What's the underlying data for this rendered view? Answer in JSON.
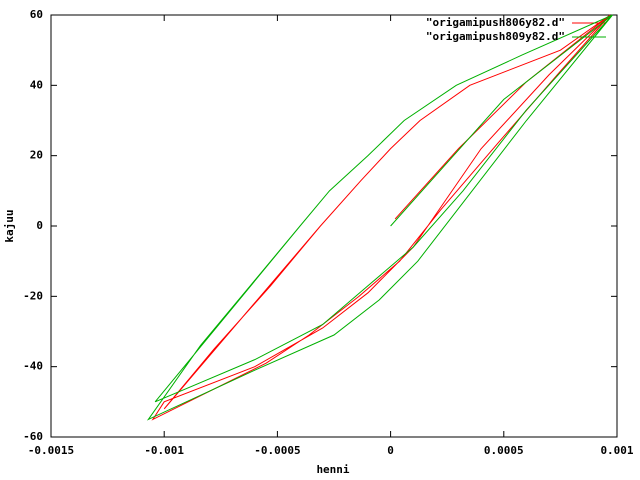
{
  "chart_data": {
    "type": "line",
    "xlabel": "henni",
    "ylabel": "kajuu",
    "xlim": [
      -0.0015,
      0.001
    ],
    "xticks": [
      -0.0015,
      -0.001,
      -0.0005,
      0,
      0.0005,
      0.001
    ],
    "ylim": [
      -60,
      60
    ],
    "yticks": [
      -60,
      -40,
      -20,
      0,
      20,
      40,
      60
    ],
    "legend": "top-right",
    "series": [
      {
        "name": "\"origamipush806y82.d\"",
        "color": "#ff0000",
        "x": [
          2e-05,
          0.0003,
          0.0006,
          0.00097,
          0.00075,
          0.00048,
          0.00022,
          4e-05,
          -0.00014,
          -0.00036,
          -0.00055,
          -0.00105,
          -0.001,
          -0.0006,
          -0.0003,
          -0.0001,
          0.0001,
          0.0004,
          0.0007,
          0.00097,
          0.00075,
          0.00035,
          0.00013,
          0,
          -0.00013,
          -0.00031,
          -0.00053,
          -0.00078,
          -0.001,
          -0.00031
        ],
        "values": [
          2,
          22,
          41,
          60,
          44,
          24,
          4.5,
          -10,
          -20,
          -31,
          -39,
          -55,
          -50,
          -40,
          -29,
          -19,
          -6,
          22,
          43,
          60,
          50,
          40,
          30,
          22,
          13,
          0,
          -17,
          -35,
          -52,
          0
        ]
      },
      {
        "name": "\"origamipush809y82.d\"",
        "color": "#00b000",
        "x": [
          0,
          0.00025,
          0.0005,
          0.00098,
          0.00058,
          0.00029,
          6e-05,
          -0.0001,
          -0.00027,
          -0.0004,
          -0.00062,
          -0.00084,
          -0.00107,
          -0.0006,
          -0.00025,
          -5e-05,
          0.00012,
          0.0003,
          0.0006,
          0.00098,
          0.0006,
          0.00032,
          0.0001,
          -0.0001,
          -0.0003,
          -0.0006,
          -0.00104,
          -0.0004
        ],
        "values": [
          0,
          18,
          36,
          60,
          48.6,
          40,
          30,
          20,
          10,
          0,
          -17,
          -34,
          -55,
          -41,
          -31,
          -21,
          -10,
          5,
          30,
          60,
          33,
          10,
          -6,
          -17,
          -28,
          -38,
          -50,
          0
        ]
      }
    ]
  }
}
